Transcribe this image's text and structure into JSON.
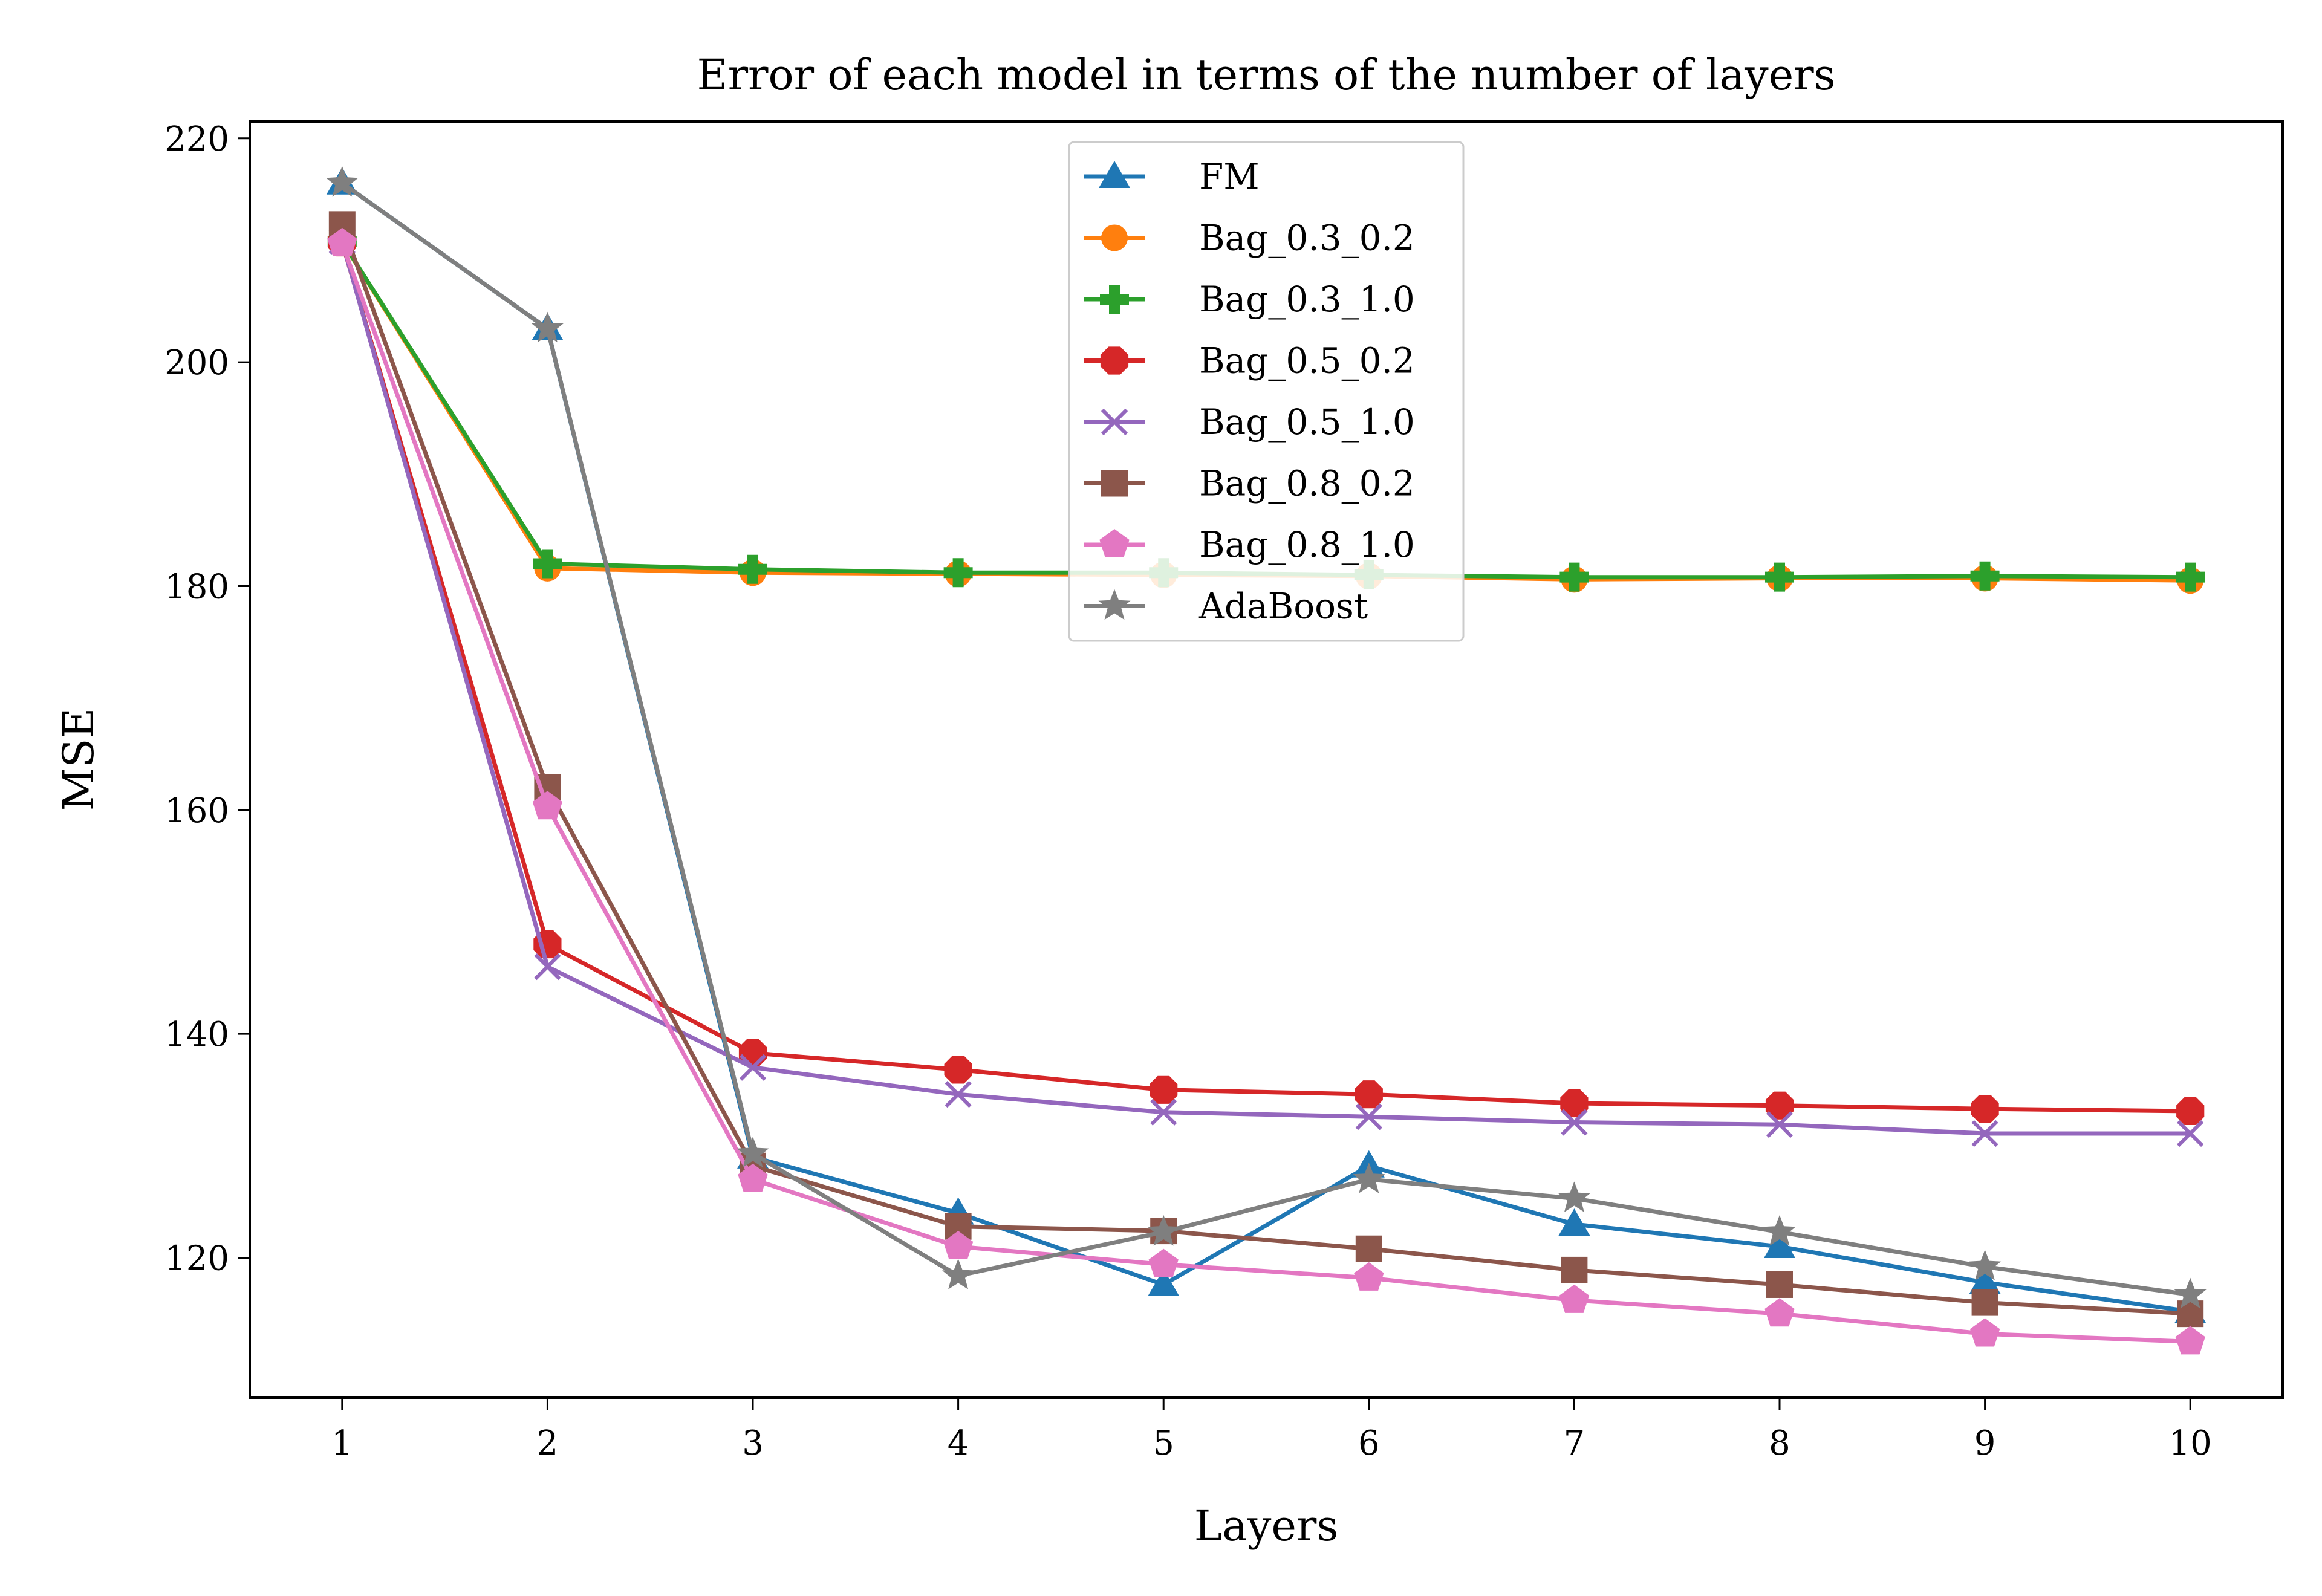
{
  "chart_data": {
    "type": "line",
    "title": "Error of each model in terms of the number of layers",
    "xlabel": "Layers",
    "ylabel": "MSE",
    "x": [
      1,
      2,
      3,
      4,
      5,
      6,
      7,
      8,
      9,
      10
    ],
    "xlim": [
      0.55,
      10.45
    ],
    "ylim": [
      107.5,
      221.5
    ],
    "xticks": [
      1,
      2,
      3,
      4,
      5,
      6,
      7,
      8,
      9,
      10
    ],
    "yticks": [
      120,
      140,
      160,
      180,
      200,
      220
    ],
    "grid": false,
    "legend_position": "upper center",
    "series": [
      {
        "name": "FM",
        "color": "#1f77b4",
        "marker": "triangle-up",
        "values": [
          216.0,
          203.0,
          129.0,
          124.0,
          117.6,
          128.2,
          123.0,
          121.0,
          117.8,
          115.2
        ]
      },
      {
        "name": "Bag_0.3_0.2",
        "color": "#ff7f0e",
        "marker": "circle",
        "values": [
          210.8,
          181.6,
          181.2,
          181.1,
          181.0,
          180.9,
          180.6,
          180.7,
          180.7,
          180.5
        ]
      },
      {
        "name": "Bag_0.3_1.0",
        "color": "#2ca02c",
        "marker": "plus-filled",
        "values": [
          210.8,
          182.0,
          181.5,
          181.2,
          181.2,
          181.0,
          180.8,
          180.8,
          180.9,
          180.8
        ]
      },
      {
        "name": "Bag_0.5_0.2",
        "color": "#d62728",
        "marker": "octagon",
        "values": [
          210.7,
          148.0,
          138.3,
          136.8,
          135.0,
          134.6,
          133.8,
          133.6,
          133.3,
          133.1
        ]
      },
      {
        "name": "Bag_0.5_1.0",
        "color": "#9467bd",
        "marker": "x",
        "values": [
          210.8,
          146.0,
          137.0,
          134.6,
          133.0,
          132.6,
          132.1,
          131.9,
          131.1,
          131.1
        ]
      },
      {
        "name": "Bag_0.8_0.2",
        "color": "#8c564b",
        "marker": "square",
        "values": [
          212.3,
          162.0,
          128.2,
          122.8,
          122.4,
          120.8,
          118.9,
          117.6,
          116.0,
          115.0
        ]
      },
      {
        "name": "Bag_0.8_1.0",
        "color": "#e377c2",
        "marker": "pentagon",
        "values": [
          210.6,
          160.3,
          127.0,
          121.0,
          119.4,
          118.2,
          116.2,
          115.0,
          113.2,
          112.5
        ]
      },
      {
        "name": "AdaBoost",
        "color": "#7f7f7f",
        "marker": "star",
        "values": [
          216.0,
          203.0,
          129.3,
          118.4,
          122.3,
          127.0,
          125.3,
          122.3,
          119.2,
          116.7
        ]
      }
    ]
  }
}
